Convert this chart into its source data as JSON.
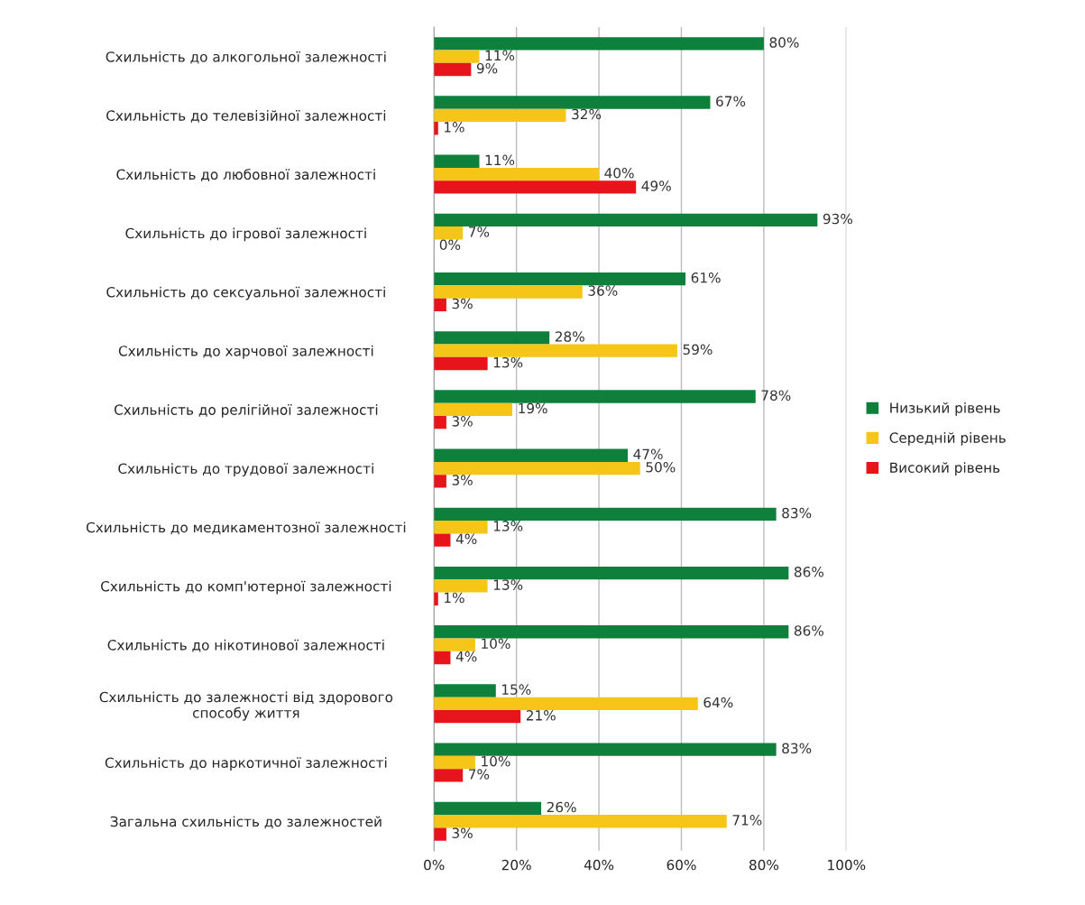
{
  "chart_data": {
    "type": "bar",
    "orientation": "horizontal",
    "categories": [
      "Схильність до алкогольної залежності",
      "Схильність до телевізійної залежності",
      "Схильність до любовної залежності",
      "Схильність до ігрової залежності",
      "Схильність до сексуальної залежності",
      "Схильність до харчової залежності",
      "Схильність до релігійної залежності",
      "Схильність до трудової залежності",
      "Схильність до медикаментозної залежності",
      "Схильність до комп'ютерної залежності",
      "Схильність до нікотинової залежності",
      "Схильність до залежності від здорового\nспособу життя",
      "Схильність до наркотичної залежності",
      "Загальна схильність до залежностей"
    ],
    "series": [
      {
        "name": "Низький рівень",
        "color": "#0f7f3c",
        "values": [
          80,
          67,
          11,
          93,
          61,
          28,
          78,
          47,
          83,
          86,
          86,
          15,
          83,
          26
        ],
        "value_labels": [
          "80%",
          "67%",
          "11%",
          "93%",
          "61%",
          "28%",
          "78%",
          "47%",
          "83%",
          "86%",
          "86%",
          "15%",
          "83%",
          "26%"
        ]
      },
      {
        "name": "Середній рівень",
        "color": "#f5c518",
        "values": [
          11,
          32,
          40,
          7,
          36,
          59,
          19,
          50,
          13,
          13,
          10,
          64,
          10,
          71
        ],
        "value_labels": [
          "11%",
          "32%",
          "40%",
          "7%",
          "36%",
          "59%",
          "19%",
          "50%",
          "13%",
          "13%",
          "10%",
          "64%",
          "10%",
          "71%"
        ]
      },
      {
        "name": "Високий рівень",
        "color": "#e8141c",
        "values": [
          9,
          1,
          49,
          0,
          3,
          13,
          3,
          3,
          4,
          1,
          4,
          21,
          7,
          3
        ],
        "value_labels": [
          "9%",
          "1%",
          "49%",
          "0%",
          "3%",
          "13%",
          "3%",
          "3%",
          "4%",
          "1%",
          "4%",
          "21%",
          "7%",
          "3%"
        ]
      }
    ],
    "xlim": [
      0,
      100
    ],
    "xticks": [
      {
        "value": 0,
        "label": "0%"
      },
      {
        "value": 20,
        "label": "20%"
      },
      {
        "value": 40,
        "label": "40%"
      },
      {
        "value": 60,
        "label": "60%"
      },
      {
        "value": 80,
        "label": "80%"
      },
      {
        "value": 100,
        "label": "100%"
      }
    ],
    "grid": "x",
    "legend": "right"
  }
}
